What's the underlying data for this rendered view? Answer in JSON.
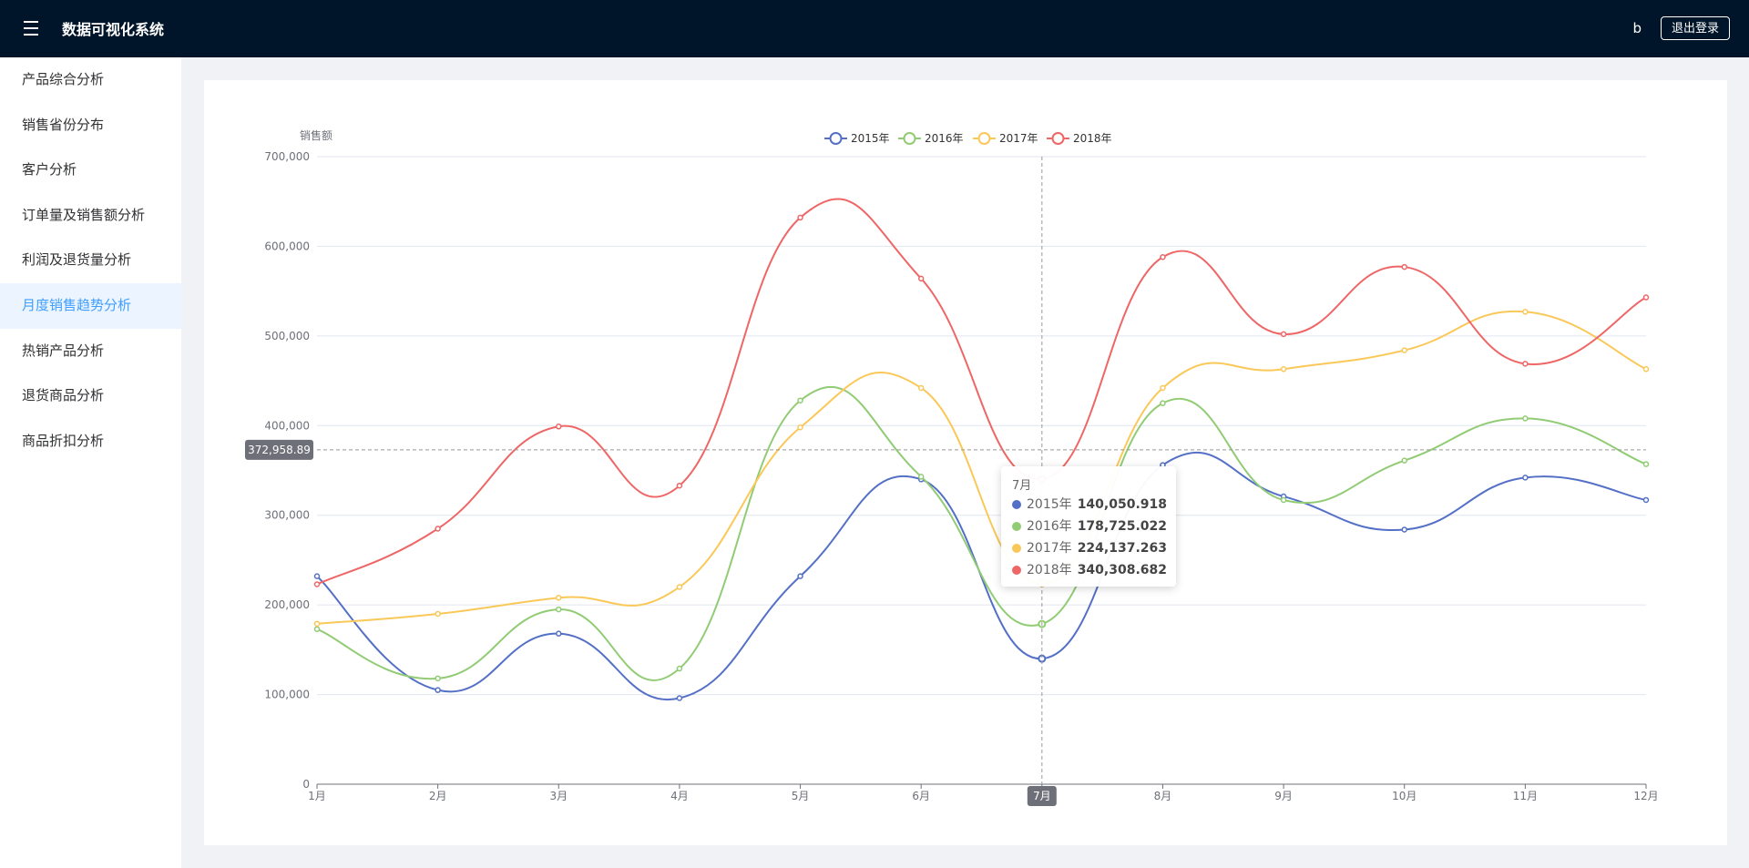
{
  "app": {
    "title": "数据可视化系统",
    "username": "b",
    "logout_label": "退出登录"
  },
  "sidebar": {
    "items": [
      {
        "label": "产品综合分析",
        "active": false
      },
      {
        "label": "销售省份分布",
        "active": false
      },
      {
        "label": "客户分析",
        "active": false
      },
      {
        "label": "订单量及销售额分析",
        "active": false
      },
      {
        "label": "利润及退货量分析",
        "active": false
      },
      {
        "label": "月度销售趋势分析",
        "active": true
      },
      {
        "label": "热销产品分析",
        "active": false
      },
      {
        "label": "退货商品分析",
        "active": false
      },
      {
        "label": "商品折扣分析",
        "active": false
      }
    ]
  },
  "colors": {
    "topbar": "#001529",
    "accent": "#409eff",
    "s2015": "#5470c6",
    "s2016": "#91cc75",
    "s2017": "#fac858",
    "s2018": "#ee6666"
  },
  "chart_data": {
    "type": "line",
    "ylabel": "销售额",
    "ylim": [
      0,
      700000
    ],
    "yticks": [
      "0",
      "100,000",
      "200,000",
      "300,000",
      "400,000",
      "500,000",
      "600,000",
      "700,000"
    ],
    "categories": [
      "1月",
      "2月",
      "3月",
      "4月",
      "5月",
      "6月",
      "7月",
      "8月",
      "9月",
      "10月",
      "11月",
      "12月"
    ],
    "legend_position": "top-center",
    "smooth": true,
    "series": [
      {
        "name": "2015年",
        "color": "#5470c6",
        "values": [
          232000,
          105000,
          168000,
          96000,
          232000,
          340000,
          140050.918,
          356000,
          321000,
          284000,
          342000,
          317000
        ]
      },
      {
        "name": "2016年",
        "color": "#91cc75",
        "values": [
          173000,
          118000,
          195000,
          129000,
          428000,
          343000,
          178725.022,
          425000,
          317000,
          361000,
          408000,
          357000
        ]
      },
      {
        "name": "2017年",
        "color": "#fac858",
        "values": [
          179000,
          190000,
          208000,
          220000,
          398000,
          442000,
          224137.263,
          442000,
          463000,
          484000,
          527000,
          463000
        ]
      },
      {
        "name": "2018年",
        "color": "#ee6666",
        "values": [
          223000,
          285000,
          399000,
          333000,
          632000,
          564000,
          340308.682,
          588000,
          502000,
          577000,
          469000,
          543000
        ]
      }
    ],
    "crosshair": {
      "x_label": "7月",
      "y_label": "372,958.89",
      "y_value": 372958.89
    },
    "tooltip": {
      "title": "7月",
      "rows": [
        {
          "name": "2015年",
          "value": "140,050.918",
          "color": "#5470c6"
        },
        {
          "name": "2016年",
          "value": "178,725.022",
          "color": "#91cc75"
        },
        {
          "name": "2017年",
          "value": "224,137.263",
          "color": "#fac858"
        },
        {
          "name": "2018年",
          "value": "340,308.682",
          "color": "#ee6666"
        }
      ]
    }
  }
}
